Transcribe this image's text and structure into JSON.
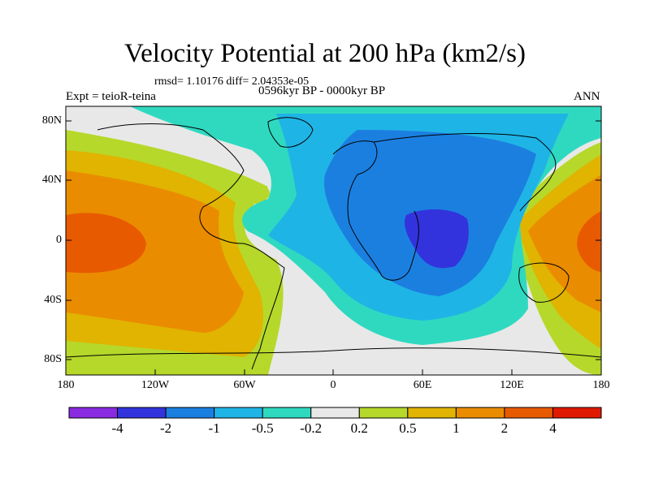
{
  "title": "Velocity Potential at 200 hPa (km2/s)",
  "stats_line": "rmsd= 1.10176 diff= 2.04353e-05",
  "experiment": "Expt = teioR-teina",
  "period": "0596kyr BP - 0000kyr BP",
  "season": "ANN",
  "lat_ticks": [
    "80N",
    "40N",
    "0",
    "40S",
    "80S"
  ],
  "lon_ticks": [
    "180",
    "120W",
    "60W",
    "0",
    "60E",
    "120E",
    "180"
  ],
  "colorbar": {
    "colors": [
      "#8a2be2",
      "#3333dd",
      "#1b7fe0",
      "#1fb4e6",
      "#2fd9c0",
      "#e8e8e8",
      "#b6d82a",
      "#e0b400",
      "#ea8c00",
      "#e85a00",
      "#e01a00"
    ],
    "labels": [
      "-4",
      "-2",
      "-1",
      "-0.5",
      "-0.2",
      "0.2",
      "0.5",
      "1",
      "2",
      "4"
    ]
  },
  "field_colors": {
    "ocean_bg": "#e8e8e8",
    "pos_02": "#b6d82a",
    "pos_05": "#e0b400",
    "pos_1": "#ea8c00",
    "pos_2": "#e85a00",
    "neg_02": "#2fd9c0",
    "neg_05": "#1fb4e6",
    "neg_1": "#1b7fe0",
    "neg_2": "#3333dd",
    "coast": "#000000"
  }
}
